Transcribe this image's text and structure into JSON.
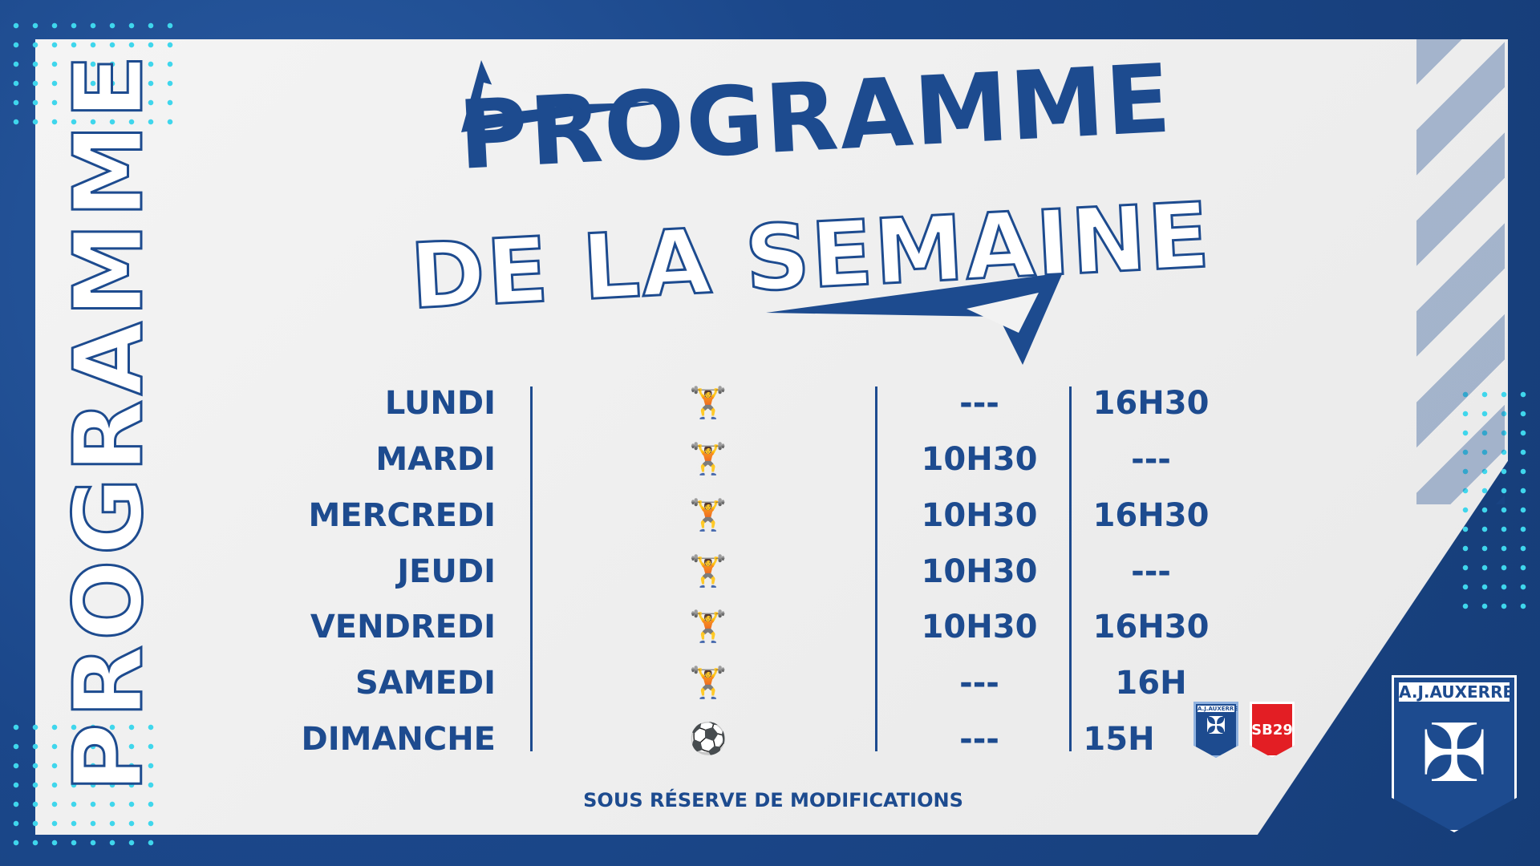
{
  "title": {
    "line1": "PROGRAMME",
    "line2": "DE LA SEMAINE"
  },
  "side_title": "PROGRAMME",
  "schedule": [
    {
      "day": "LUNDI",
      "activity": "weightlifter-icon",
      "morning": "---",
      "afternoon": "16H30"
    },
    {
      "day": "MARDI",
      "activity": "weightlifter-icon",
      "morning": "10H30",
      "afternoon": "---"
    },
    {
      "day": "MERCREDI",
      "activity": "weightlifter-icon",
      "morning": "10H30",
      "afternoon": "16H30"
    },
    {
      "day": "JEUDI",
      "activity": "weightlifter-icon",
      "morning": "10H30",
      "afternoon": "---"
    },
    {
      "day": "VENDREDI",
      "activity": "weightlifter-icon",
      "morning": "10H30",
      "afternoon": "16H30"
    },
    {
      "day": "SAMEDI",
      "activity": "weightlifter-icon",
      "morning": "---",
      "afternoon": "16H"
    },
    {
      "day": "DIMANCHE",
      "activity": "soccer-ball-icon",
      "morning": "---",
      "afternoon": "15H"
    }
  ],
  "match": {
    "home": "A.J.AUXERRE",
    "away": "SB29"
  },
  "footer": "SOUS RÉSERVE DE MODIFICATIONS",
  "logo": "A.J.AUXERRE",
  "colors": {
    "brand": "#1d4b8f",
    "accent": "#3fd6ec",
    "away": "#e31e24"
  }
}
